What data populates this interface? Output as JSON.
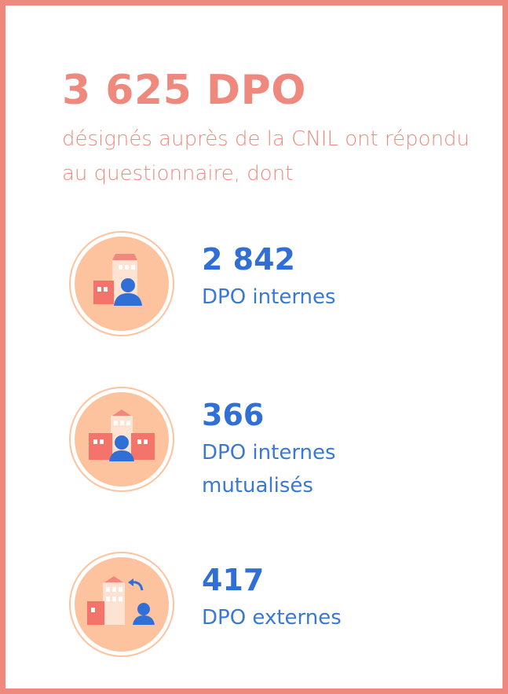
{
  "headline": "3 625 DPO",
  "subline": "désignés auprès de la CNIL ont répondu au questionnaire, dont",
  "stats": [
    {
      "number": "2 842",
      "label": "DPO internes",
      "icon": "building-person-icon"
    },
    {
      "number": "366",
      "label": "DPO internes mutualisés",
      "icon": "shared-buildings-person-icon"
    },
    {
      "number": "417",
      "label": "DPO externes",
      "icon": "building-external-person-icon"
    }
  ],
  "colors": {
    "accent": "#f0897d",
    "blue": "#2f6fd6",
    "icon_bg": "#fcc39e"
  }
}
